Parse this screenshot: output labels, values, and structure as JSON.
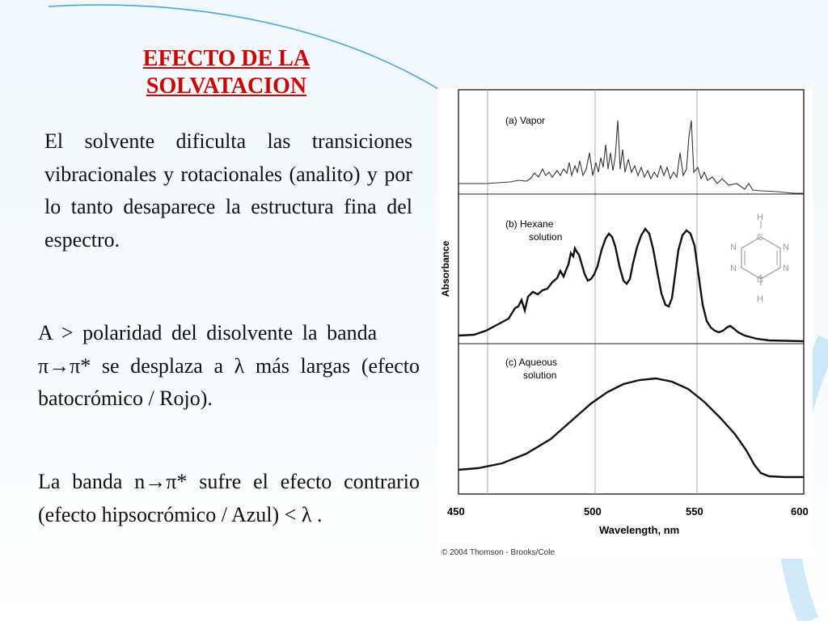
{
  "title": {
    "line1": "EFECTO DE LA",
    "line2": "SOLVATACION"
  },
  "paragraphs": {
    "p1": "El solvente dificulta las transiciones vibracionales y rotacionales (analito) y por lo tanto desaparece la estructura fina del espectro.",
    "p2": "A > polaridad del disolvente la banda      π→π* se desplaza a λ más largas (efecto batocrómico / Rojo).",
    "p3": "La banda n→π* sufre el efecto contrario (efecto hipsocrómico / Azul) < λ ."
  },
  "figure": {
    "panel_a": "(a) Vapor",
    "panel_b_line1": "(b) Hexane",
    "panel_b_line2": "solution",
    "panel_c_line1": "(c) Aqueous",
    "panel_c_line2": "solution",
    "ylabel": "Absorbance",
    "xlabel": "Wavelength, nm",
    "xticks": [
      "450",
      "500",
      "550",
      "600"
    ],
    "copyright": "© 2004 Thomson - Brooks/Cole",
    "molecule": {
      "top_h": "H",
      "top_c": "C",
      "bottom_c": "C",
      "bottom_h": "H",
      "n1": "N",
      "n2": "N",
      "n3": "N",
      "n4": "N"
    }
  },
  "colors": {
    "title": "#cc0000",
    "text": "#111111",
    "deco_line": "#3aa0d8"
  }
}
